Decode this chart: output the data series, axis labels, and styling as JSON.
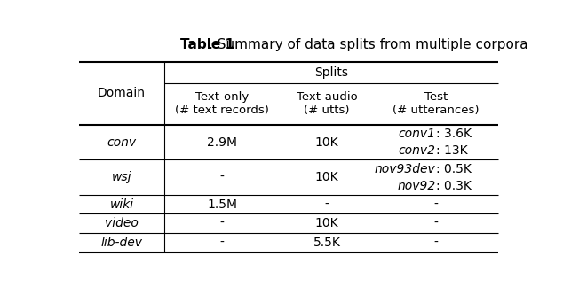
{
  "title_bold": "Table 1",
  "title_rest": ". Summary of data splits from multiple corpora",
  "background_color": "#ffffff",
  "fontsize": 10,
  "title_fontsize": 11,
  "rows": [
    [
      "conv",
      "2.9M",
      "10K",
      [
        [
          "conv1",
          ": 3.6K"
        ],
        [
          "conv2",
          ": 13K"
        ]
      ]
    ],
    [
      "wsj",
      "-",
      "10K",
      [
        [
          "nov93dev",
          ": 0.5K"
        ],
        [
          "nov92",
          ": 0.3K"
        ]
      ]
    ],
    [
      "wiki",
      "1.5M",
      "-",
      "-"
    ],
    [
      "video",
      "-",
      "10K",
      "-"
    ],
    [
      "lib-dev",
      "-",
      "5.5K",
      "-"
    ]
  ]
}
